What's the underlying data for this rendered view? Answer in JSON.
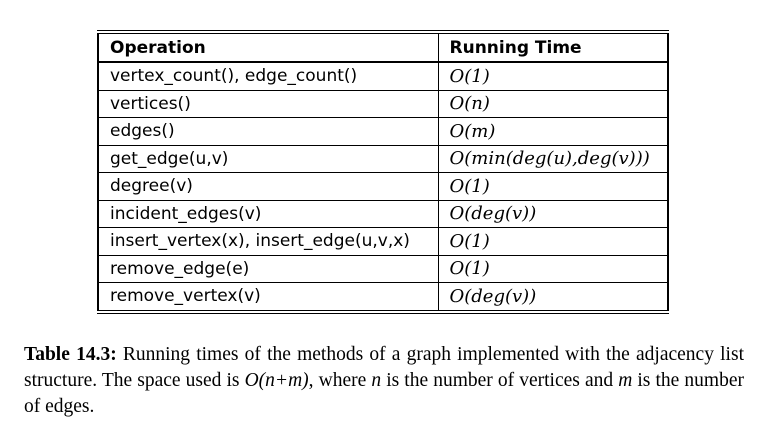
{
  "table": {
    "headers": [
      "Operation",
      "Running Time"
    ],
    "rows": [
      {
        "operation": "vertex_count(), edge_count()",
        "time": "O(1)"
      },
      {
        "operation": "vertices()",
        "time": "O(n)"
      },
      {
        "operation": "edges()",
        "time": "O(m)"
      },
      {
        "operation": "get_edge(u,v)",
        "time": "O(min(deg(u),deg(v)))"
      },
      {
        "operation": "degree(v)",
        "time": "O(1)"
      },
      {
        "operation": "incident_edges(v)",
        "time": "O(deg(v))"
      },
      {
        "operation": "insert_vertex(x), insert_edge(u,v,x)",
        "time": "O(1)"
      },
      {
        "operation": "remove_edge(e)",
        "time": "O(1)"
      },
      {
        "operation": "remove_vertex(v)",
        "time": "O(deg(v))"
      }
    ]
  },
  "caption": {
    "label": "Table 14.3:",
    "text_1": " Running times of the methods of a graph implemented with the adjacency list structure. The space used is ",
    "math_1": "O(n+m)",
    "text_2": ", where ",
    "var_n": "n",
    "text_3": " is the number of vertices and ",
    "var_m": "m",
    "text_4": " is the number of edges."
  }
}
